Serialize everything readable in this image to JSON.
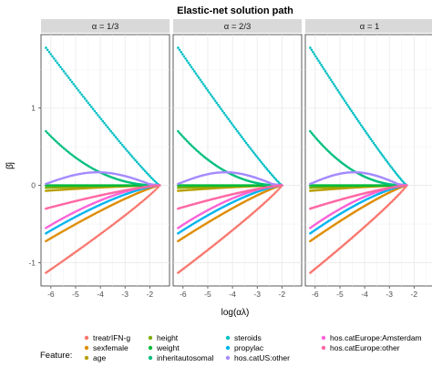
{
  "chart_data": {
    "type": "scatter",
    "title": "Elastic-net solution path",
    "xlabel": "log(αλ)",
    "ylabel": "β̂j",
    "xlim": [
      -6.4,
      -1.2
    ],
    "ylim": [
      -1.3,
      1.95
    ],
    "xticks": [
      -6,
      -5,
      -4,
      -3,
      -2
    ],
    "yticks": [
      -1,
      0,
      1
    ],
    "grid": true,
    "legend_title": "Feature:",
    "legend_position": "bottom",
    "panels": [
      {
        "label": "α = 1/3",
        "alpha": 0.3333,
        "x_end": -1.6
      },
      {
        "label": "α = 2/3",
        "alpha": 0.6667,
        "x_end": -2.0
      },
      {
        "label": "α = 1",
        "alpha": 1.0,
        "x_end": -2.3
      }
    ],
    "series": [
      {
        "name": "treatrIFN-g",
        "color": "#F8766D",
        "start": -1.13,
        "shape": 0.9
      },
      {
        "name": "sexfemale",
        "color": "#DE8C00",
        "start": -0.72,
        "shape": 1.2
      },
      {
        "name": "age",
        "color": "#B79F00",
        "start": -0.07,
        "shape": 1.5
      },
      {
        "name": "height",
        "color": "#7CAE00",
        "start": -0.03,
        "shape": 1.5
      },
      {
        "name": "weight",
        "color": "#00BA38",
        "start": 0.0,
        "shape": 1.5
      },
      {
        "name": "inheritautosomal",
        "color": "#00BF7D",
        "start": 0.7,
        "shape": 2.2
      },
      {
        "name": "steroids",
        "color": "#00BFC4",
        "start": 1.78,
        "shape": 1.1
      },
      {
        "name": "propylac",
        "color": "#00B4EF",
        "start": -0.62,
        "shape": 1.4
      },
      {
        "name": "hos.catUS:other",
        "color": "#A58AFF",
        "start": 0.02,
        "shape": 0,
        "bump": 0.15
      },
      {
        "name": "hos.catEurope:Amsterdam",
        "color": "#FB61D7",
        "start": -0.55,
        "shape": 1.6
      },
      {
        "name": "hos.catEurope:other",
        "color": "#FF67A4",
        "start": -0.3,
        "shape": 1.3
      }
    ]
  }
}
